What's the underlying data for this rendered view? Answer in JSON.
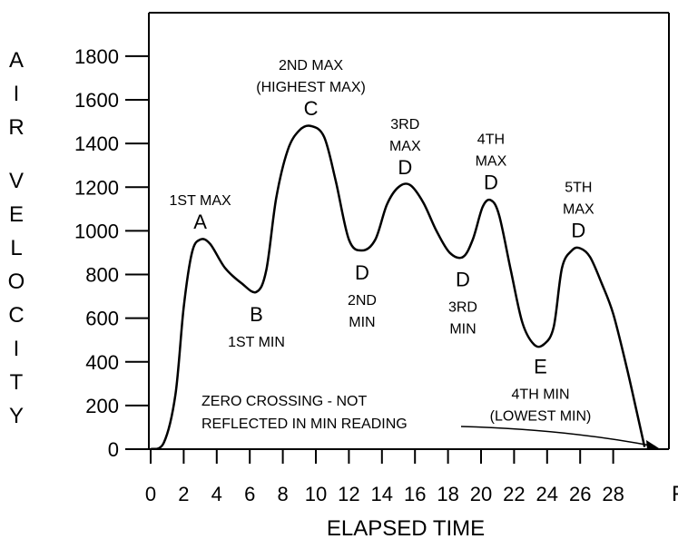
{
  "chart_data": {
    "type": "line",
    "xlabel": "ELAPSED TIME",
    "ylabel": "AIR VELOCITY",
    "xlim": [
      0,
      30
    ],
    "ylim": [
      0,
      1800
    ],
    "x_ticks": [
      "0",
      "2",
      "4",
      "6",
      "8",
      "10",
      "12",
      "14",
      "16",
      "18",
      "20",
      "22",
      "24",
      "26",
      "28"
    ],
    "y_ticks": [
      "0",
      "200",
      "400",
      "600",
      "800",
      "1000",
      "1200",
      "1400",
      "1600",
      "1800"
    ],
    "x_axis_end_label": "F",
    "grid": false,
    "series": [
      {
        "points": [
          [
            0,
            0
          ],
          [
            0.8,
            30
          ],
          [
            1.5,
            250
          ],
          [
            2.0,
            650
          ],
          [
            2.5,
            900
          ],
          [
            3.0,
            960
          ],
          [
            3.6,
            940
          ],
          [
            4.5,
            830
          ],
          [
            5.5,
            760
          ],
          [
            6.4,
            720
          ],
          [
            7.0,
            820
          ],
          [
            7.6,
            1150
          ],
          [
            8.3,
            1370
          ],
          [
            9.0,
            1460
          ],
          [
            9.7,
            1480
          ],
          [
            10.5,
            1430
          ],
          [
            11.2,
            1230
          ],
          [
            12.0,
            960
          ],
          [
            12.8,
            910
          ],
          [
            13.6,
            960
          ],
          [
            14.3,
            1120
          ],
          [
            15.0,
            1200
          ],
          [
            15.7,
            1210
          ],
          [
            16.5,
            1130
          ],
          [
            17.3,
            1000
          ],
          [
            18.1,
            900
          ],
          [
            18.9,
            880
          ],
          [
            19.5,
            960
          ],
          [
            20.1,
            1110
          ],
          [
            20.6,
            1140
          ],
          [
            21.1,
            1070
          ],
          [
            21.8,
            820
          ],
          [
            22.5,
            580
          ],
          [
            23.2,
            480
          ],
          [
            23.8,
            480
          ],
          [
            24.4,
            560
          ],
          [
            24.9,
            830
          ],
          [
            25.5,
            910
          ],
          [
            26.0,
            920
          ],
          [
            26.6,
            880
          ],
          [
            27.3,
            760
          ],
          [
            28.0,
            620
          ],
          [
            28.8,
            380
          ],
          [
            29.4,
            180
          ],
          [
            29.9,
            10
          ]
        ]
      }
    ],
    "annotations": [
      {
        "letter": "A",
        "lines": [
          "1ST MAX"
        ],
        "x": 3.0,
        "y": 960
      },
      {
        "letter": "B",
        "lines": [
          "1ST MIN"
        ],
        "x": 6.4,
        "y": 720
      },
      {
        "letter": "C",
        "lines": [
          "2ND MAX",
          "(HIGHEST MAX)"
        ],
        "x": 9.7,
        "y": 1480
      },
      {
        "letter": "D",
        "lines": [
          "2ND",
          "MIN"
        ],
        "x": 12.8,
        "y": 910
      },
      {
        "letter": "D",
        "lines": [
          "3RD",
          "MAX"
        ],
        "x": 15.4,
        "y": 1210
      },
      {
        "letter": "D",
        "lines": [
          "3RD",
          "MIN"
        ],
        "x": 18.9,
        "y": 880
      },
      {
        "letter": "D",
        "lines": [
          "4TH",
          "MAX"
        ],
        "x": 20.6,
        "y": 1140
      },
      {
        "letter": "E",
        "lines": [
          "4TH MIN",
          "(LOWEST MIN)"
        ],
        "x": 23.6,
        "y": 480
      },
      {
        "letter": "D",
        "lines": [
          "5TH",
          "MAX"
        ],
        "x": 25.9,
        "y": 920
      }
    ],
    "zero_crossing_note": [
      "ZERO CROSSING - NOT",
      "REFLECTED IN MIN READING"
    ],
    "colors": {
      "line": "#000000",
      "axes": "#000000",
      "background": "#ffffff"
    }
  }
}
